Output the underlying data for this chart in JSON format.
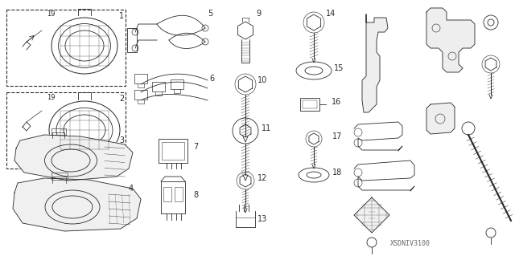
{
  "background_color": "#ffffff",
  "watermark": "XSDNIV3100",
  "fig_width": 6.4,
  "fig_height": 3.19,
  "dpi": 100,
  "line_color": "#2a2a2a"
}
